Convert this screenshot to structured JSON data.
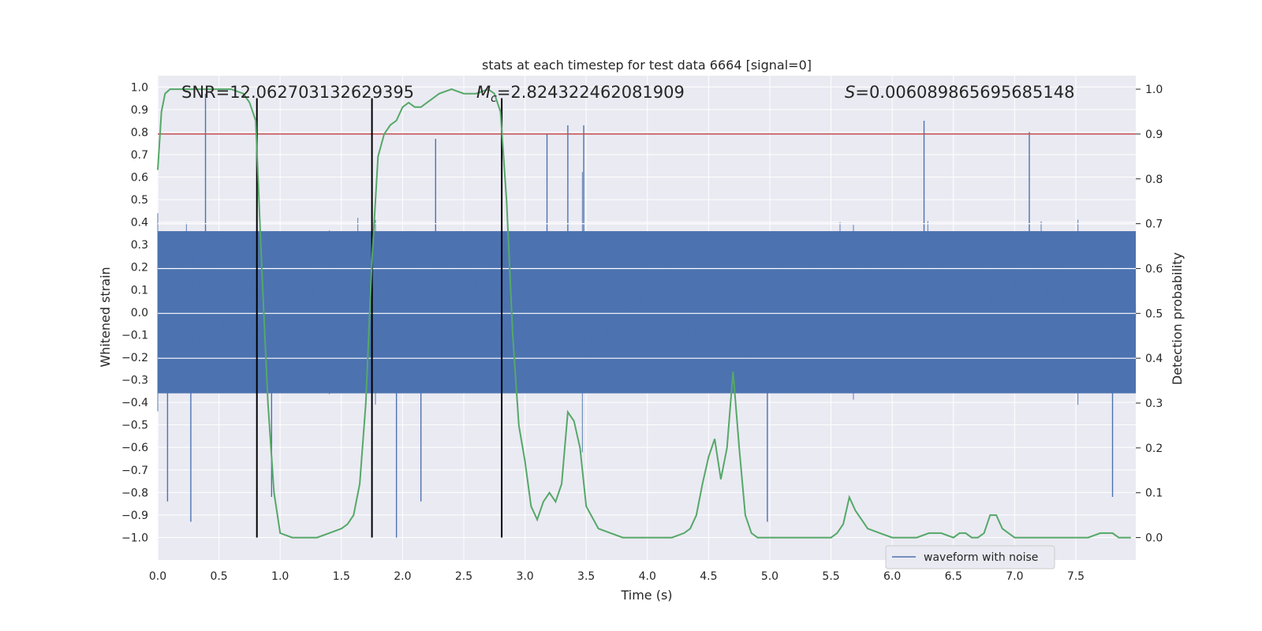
{
  "chart_data": {
    "type": "line",
    "title": "stats at each timestep for test data 6664 [signal=0]",
    "xlabel": "Time (s)",
    "ylabel_left": "Whitened strain",
    "ylabel_right": "Detection probability",
    "xlim": [
      0.0,
      7.99
    ],
    "ylim_left": [
      -1.1,
      1.05
    ],
    "ylim_right": [
      -0.05,
      1.03
    ],
    "xticks": [
      "0.0",
      "0.5",
      "1.0",
      "1.5",
      "2.0",
      "2.5",
      "3.0",
      "3.5",
      "4.0",
      "4.5",
      "5.0",
      "5.5",
      "6.0",
      "6.5",
      "7.0",
      "7.5"
    ],
    "yticks_left": [
      "1.0",
      "0.9",
      "0.8",
      "0.7",
      "0.6",
      "0.5",
      "0.4",
      "0.3",
      "0.2",
      "0.1",
      "0.0",
      "-0.1",
      "-0.2",
      "-0.3",
      "-0.4",
      "-0.5",
      "-0.6",
      "-0.7",
      "-0.8",
      "-0.9",
      "-1.0"
    ],
    "yticks_right": [
      "1.0",
      "0.9",
      "0.8",
      "0.7",
      "0.6",
      "0.5",
      "0.4",
      "0.3",
      "0.2",
      "0.1",
      "0.0"
    ],
    "grid": true,
    "legend": {
      "placement": "lower-right",
      "entries": [
        "waveform with noise"
      ]
    },
    "annotations": {
      "snr": "SNR=12.062703132629395",
      "mc_symbol": "M",
      "mc_sub": "c",
      "mc_value": "=2.824322462081909",
      "s_symbol": "S",
      "s_value": "=0.006089865695685148"
    },
    "threshold_probability": 0.9,
    "vertical_lines_s": [
      0.81,
      1.75,
      2.81
    ],
    "vertical_line_range_left": [
      -1.0,
      0.95
    ],
    "waveform_spikes": [
      {
        "x": 0.39,
        "y": 0.97
      },
      {
        "x": 0.08,
        "y": -0.84
      },
      {
        "x": 0.27,
        "y": -0.93
      },
      {
        "x": 0.93,
        "y": -0.82
      },
      {
        "x": 1.95,
        "y": -1.0
      },
      {
        "x": 2.15,
        "y": -0.84
      },
      {
        "x": 3.35,
        "y": 0.83
      },
      {
        "x": 3.48,
        "y": 0.83
      },
      {
        "x": 6.26,
        "y": 0.85
      },
      {
        "x": 7.8,
        "y": -0.82
      },
      {
        "x": 4.98,
        "y": -0.93
      },
      {
        "x": 7.12,
        "y": 0.8
      },
      {
        "x": 3.18,
        "y": 0.79
      },
      {
        "x": 2.27,
        "y": 0.77
      }
    ],
    "series": [
      {
        "name": "waveform with noise",
        "color": "#4c72b0",
        "envelope_abs_approx": 0.36
      },
      {
        "color": "#55a868",
        "x": [
          0.0,
          0.03,
          0.06,
          0.1,
          0.2,
          0.3,
          0.4,
          0.5,
          0.6,
          0.7,
          0.75,
          0.8,
          0.85,
          0.9,
          0.95,
          1.0,
          1.1,
          1.2,
          1.3,
          1.4,
          1.5,
          1.55,
          1.6,
          1.65,
          1.7,
          1.75,
          1.8,
          1.85,
          1.9,
          1.95,
          2.0,
          2.05,
          2.1,
          2.15,
          2.2,
          2.3,
          2.4,
          2.5,
          2.6,
          2.7,
          2.75,
          2.8,
          2.85,
          2.9,
          2.95,
          3.0,
          3.05,
          3.1,
          3.15,
          3.2,
          3.25,
          3.3,
          3.35,
          3.4,
          3.45,
          3.5,
          3.6,
          3.7,
          3.8,
          3.9,
          4.0,
          4.1,
          4.2,
          4.3,
          4.35,
          4.4,
          4.45,
          4.5,
          4.55,
          4.6,
          4.65,
          4.7,
          4.75,
          4.8,
          4.85,
          4.9,
          5.0,
          5.1,
          5.2,
          5.3,
          5.4,
          5.5,
          5.55,
          5.6,
          5.65,
          5.7,
          5.75,
          5.8,
          5.9,
          6.0,
          6.1,
          6.2,
          6.3,
          6.4,
          6.5,
          6.55,
          6.6,
          6.65,
          6.7,
          6.75,
          6.8,
          6.85,
          6.9,
          6.95,
          7.0,
          7.1,
          7.2,
          7.3,
          7.4,
          7.5,
          7.6,
          7.7,
          7.75,
          7.8,
          7.85,
          7.9,
          7.95
        ],
        "values": [
          0.82,
          0.95,
          0.99,
          1.0,
          1.0,
          1.0,
          1.0,
          1.0,
          1.0,
          0.99,
          0.97,
          0.93,
          0.6,
          0.3,
          0.1,
          0.01,
          0.0,
          0.0,
          0.0,
          0.01,
          0.02,
          0.03,
          0.05,
          0.12,
          0.3,
          0.62,
          0.85,
          0.9,
          0.92,
          0.93,
          0.96,
          0.97,
          0.96,
          0.96,
          0.97,
          0.99,
          1.0,
          0.99,
          0.99,
          1.0,
          0.99,
          0.95,
          0.75,
          0.45,
          0.25,
          0.17,
          0.07,
          0.04,
          0.08,
          0.1,
          0.08,
          0.12,
          0.28,
          0.26,
          0.2,
          0.07,
          0.02,
          0.01,
          0.0,
          0.0,
          0.0,
          0.0,
          0.0,
          0.01,
          0.02,
          0.05,
          0.12,
          0.18,
          0.22,
          0.13,
          0.2,
          0.37,
          0.2,
          0.05,
          0.01,
          0.0,
          0.0,
          0.0,
          0.0,
          0.0,
          0.0,
          0.0,
          0.01,
          0.03,
          0.09,
          0.06,
          0.04,
          0.02,
          0.01,
          0.0,
          0.0,
          0.0,
          0.01,
          0.01,
          0.0,
          0.01,
          0.01,
          0.0,
          0.0,
          0.01,
          0.05,
          0.05,
          0.02,
          0.01,
          0.0,
          0.0,
          0.0,
          0.0,
          0.0,
          0.0,
          0.0,
          0.01,
          0.01,
          0.01,
          0.0,
          0.0,
          0.0
        ]
      }
    ],
    "colors": {
      "background": "#eaeaf2",
      "grid": "#ffffff",
      "waveform": "#4c72b0",
      "probability": "#55a868",
      "threshold": "#c44e52",
      "vertical_lines": "#000000"
    }
  }
}
